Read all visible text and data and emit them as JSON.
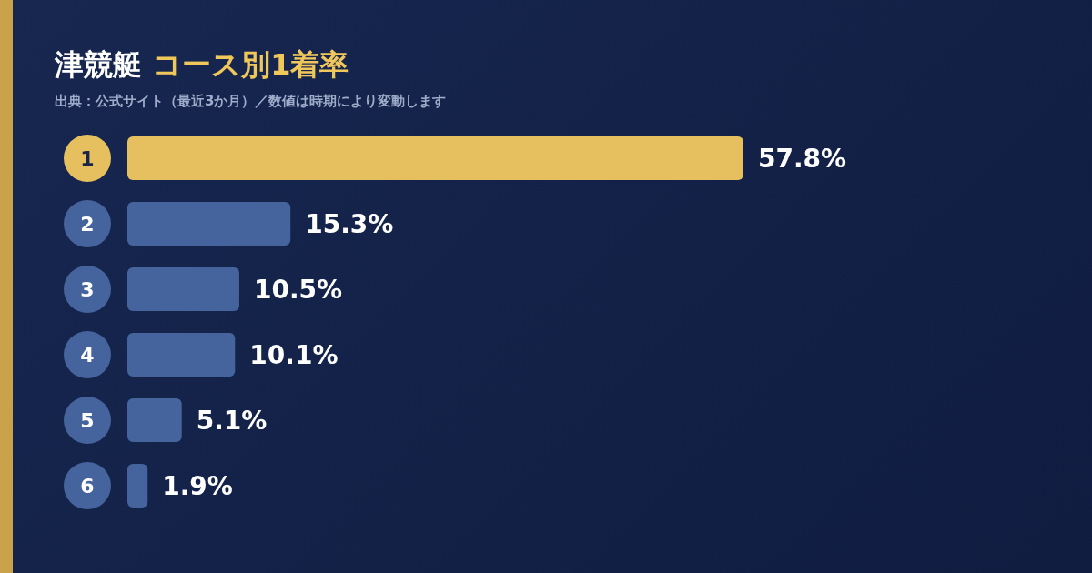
{
  "chart_data": {
    "type": "bar",
    "orientation": "horizontal",
    "title": "津競艇 コース別1着率",
    "subtitle": "出典：公式サイト（最近3か月）／数値は時期により変動します",
    "categories": [
      "1",
      "2",
      "3",
      "4",
      "5",
      "6"
    ],
    "values": [
      57.8,
      15.3,
      10.5,
      10.1,
      5.1,
      1.9
    ],
    "colors": [
      "#e6bf5e",
      "#45639c",
      "#45639c",
      "#45639c",
      "#45639c",
      "#45639c"
    ],
    "value_labels": [
      "57.8%",
      "15.3%",
      "10.5%",
      "10.1%",
      "5.1%",
      "1.9%"
    ],
    "grid": false,
    "legend": false
  }
}
